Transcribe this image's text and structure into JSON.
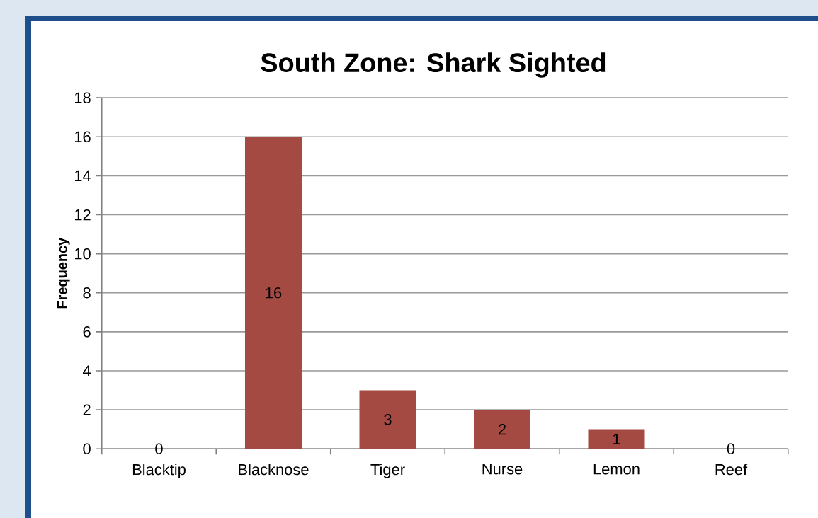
{
  "chart_data": {
    "type": "bar",
    "title": "South Zone: Shark Sighted",
    "ylabel": "Frequency",
    "categories": [
      "Blacktip",
      "Blacknose",
      "Tiger",
      "Nurse",
      "Lemon",
      "Reef"
    ],
    "values": [
      0,
      16,
      3,
      2,
      1,
      0
    ],
    "color": "#a54a43",
    "ylim": [
      0,
      18
    ],
    "yticks": [
      0,
      2,
      4,
      6,
      8,
      10,
      12,
      14,
      16,
      18
    ],
    "grid": "y",
    "data_labels": true
  }
}
